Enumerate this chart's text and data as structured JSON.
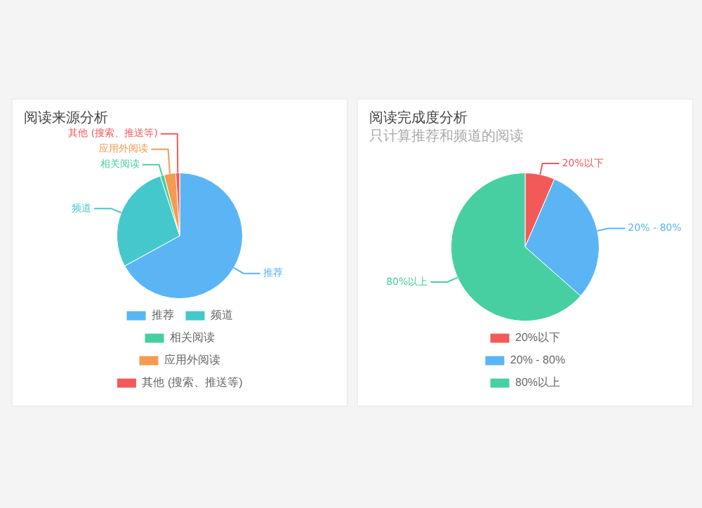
{
  "chart_data": [
    {
      "type": "pie",
      "title": "阅读来源分析",
      "categories": [
        "推荐",
        "频道",
        "相关阅读",
        "应用外阅读",
        "其他 (搜索、推送等)"
      ],
      "values": [
        67,
        28,
        1,
        3,
        1
      ],
      "colors": [
        "#5bb5f5",
        "#45c8cc",
        "#47cfa2",
        "#f59a50",
        "#f25a5a"
      ],
      "legend": "bottom"
    },
    {
      "type": "pie",
      "title": "阅读完成度分析",
      "subtitle": "只计算推荐和频道的阅读",
      "categories": [
        "20%以下",
        "20% - 80%",
        "80%以上"
      ],
      "values": [
        6.5,
        30,
        63.5
      ],
      "colors": [
        "#f25a5a",
        "#5bb5f5",
        "#47cfa2"
      ],
      "legend": "bottom"
    }
  ]
}
